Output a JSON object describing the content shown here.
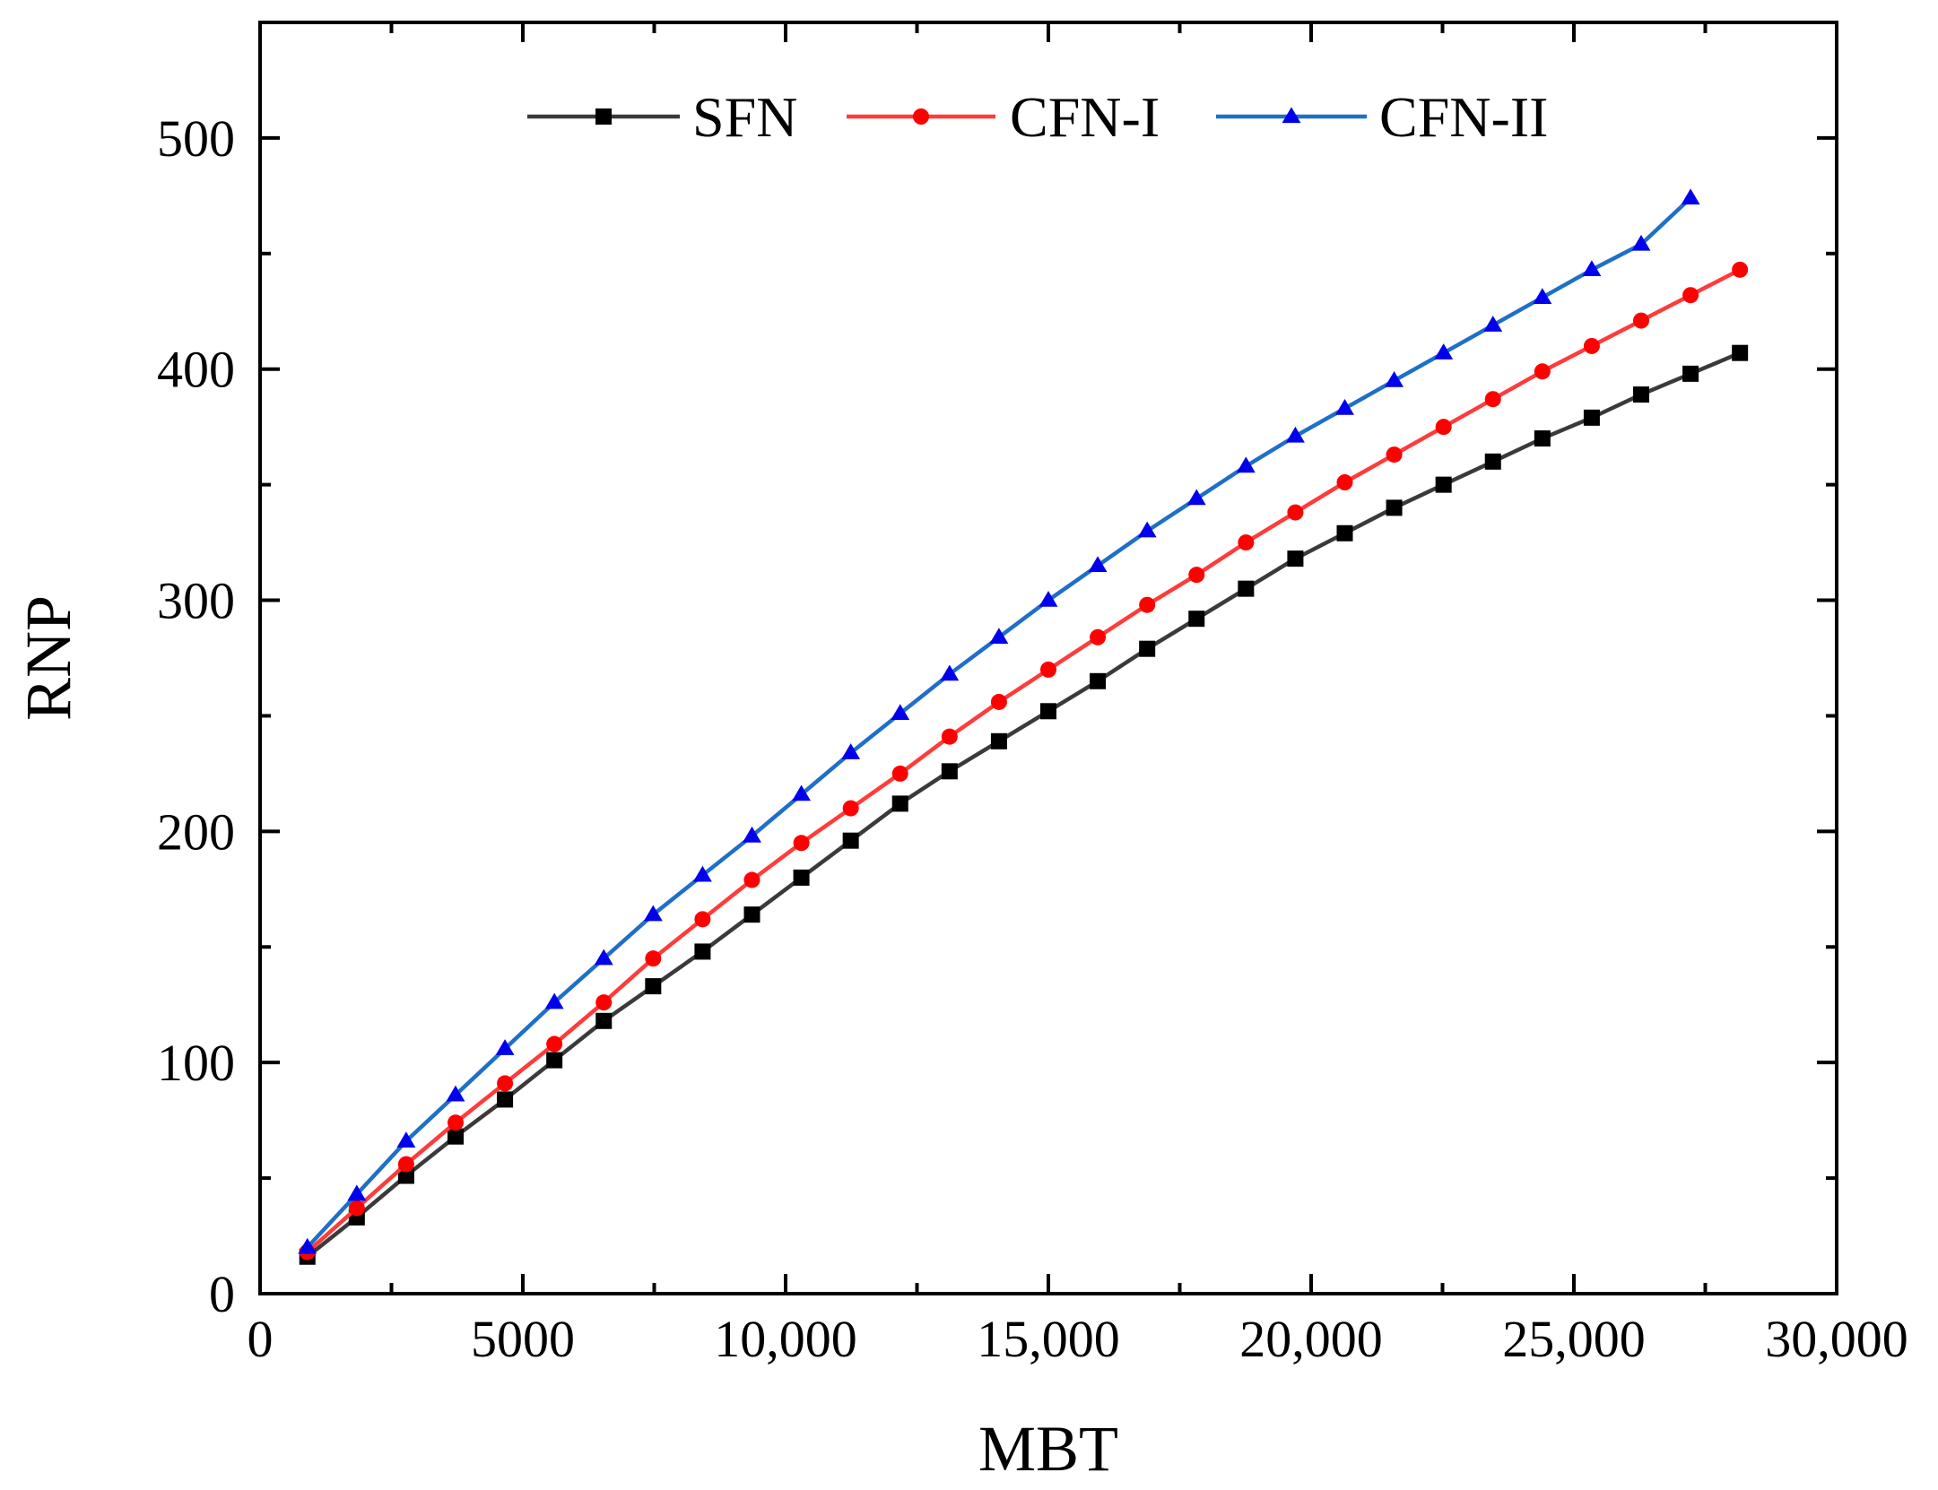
{
  "chart_data": {
    "type": "line",
    "title": "",
    "xlabel": "MBT",
    "ylabel": "RNP",
    "xlim": [
      0,
      30000
    ],
    "ylim": [
      0,
      550
    ],
    "x_ticks": [
      0,
      5000,
      10000,
      15000,
      20000,
      25000,
      30000
    ],
    "x_tick_labels": [
      "0",
      "5000",
      "10,000",
      "15,000",
      "20,000",
      "25,000",
      "30,000"
    ],
    "y_ticks": [
      0,
      100,
      200,
      300,
      400,
      500
    ],
    "y_tick_labels": [
      "0",
      "100",
      "200",
      "300",
      "400",
      "500"
    ],
    "grid": false,
    "legend_position": "top-center",
    "series": [
      {
        "name": "SFN",
        "color": "#000000",
        "line_color": "#3a3a3a",
        "marker": "square",
        "x": [
          900,
          1840,
          2780,
          3720,
          4660,
          5600,
          6540,
          7480,
          8420,
          9360,
          10300,
          11240,
          12180,
          13120,
          14060,
          15000,
          15940,
          16880,
          17820,
          18760,
          19700,
          20640,
          21580,
          22520,
          23460,
          24400,
          25340,
          26280,
          27220,
          28160
        ],
        "y": [
          16,
          33,
          51,
          68,
          84,
          101,
          118,
          133,
          148,
          164,
          180,
          196,
          212,
          226,
          239,
          252,
          265,
          279,
          292,
          305,
          318,
          329,
          340,
          350,
          360,
          370,
          379,
          389,
          398,
          407
        ]
      },
      {
        "name": "CFN-I",
        "color": "#ff0000",
        "line_color": "#ff3b3b",
        "marker": "circle",
        "x": [
          900,
          1840,
          2780,
          3720,
          4660,
          5600,
          6540,
          7480,
          8420,
          9360,
          10300,
          11240,
          12180,
          13120,
          14060,
          15000,
          15940,
          16880,
          17820,
          18760,
          19700,
          20640,
          21580,
          22520,
          23460,
          24400,
          25340,
          26280,
          27220,
          28160
        ],
        "y": [
          18,
          37,
          56,
          74,
          91,
          108,
          126,
          145,
          162,
          179,
          195,
          210,
          225,
          241,
          256,
          270,
          284,
          298,
          311,
          325,
          338,
          351,
          363,
          375,
          387,
          399,
          410,
          421,
          432,
          443
        ]
      },
      {
        "name": "CFN-II",
        "color": "#0000ee",
        "line_color": "#1e6fc8",
        "marker": "triangle",
        "x": [
          900,
          1840,
          2780,
          3720,
          4660,
          5600,
          6540,
          7480,
          8420,
          9360,
          10300,
          11240,
          12180,
          13120,
          14060,
          15000,
          15940,
          16880,
          17820,
          18760,
          19700,
          20640,
          21580,
          22520,
          23460,
          24400,
          25340,
          26280,
          27220
        ],
        "y": [
          20,
          43,
          66,
          86,
          106,
          126,
          145,
          164,
          181,
          198,
          216,
          234,
          251,
          268,
          284,
          300,
          315,
          330,
          344,
          358,
          371,
          383,
          395,
          407,
          419,
          431,
          443,
          454,
          474
        ]
      }
    ]
  }
}
